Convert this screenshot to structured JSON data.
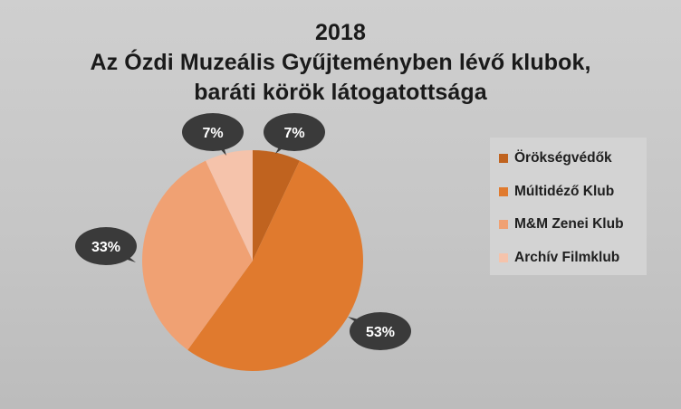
{
  "chart_data": {
    "type": "pie",
    "title_lines": [
      "2018",
      "Az Ózdi Muzeális Gyűjteményben lévő klubok,",
      "baráti körök látogatottsága"
    ],
    "categories": [
      "Örökségvédők",
      "Múltidéző Klub",
      "M&M Zenei Klub",
      "Archív Filmklub"
    ],
    "values": [
      7,
      53,
      33,
      7
    ],
    "data_labels": [
      "7%",
      "53%",
      "33%",
      "7%"
    ],
    "colors": [
      "#c0631f",
      "#e07a2e",
      "#f0a173",
      "#f5c3ab"
    ],
    "legend_position": "right",
    "data_label_style": "dark callout bubbles"
  }
}
